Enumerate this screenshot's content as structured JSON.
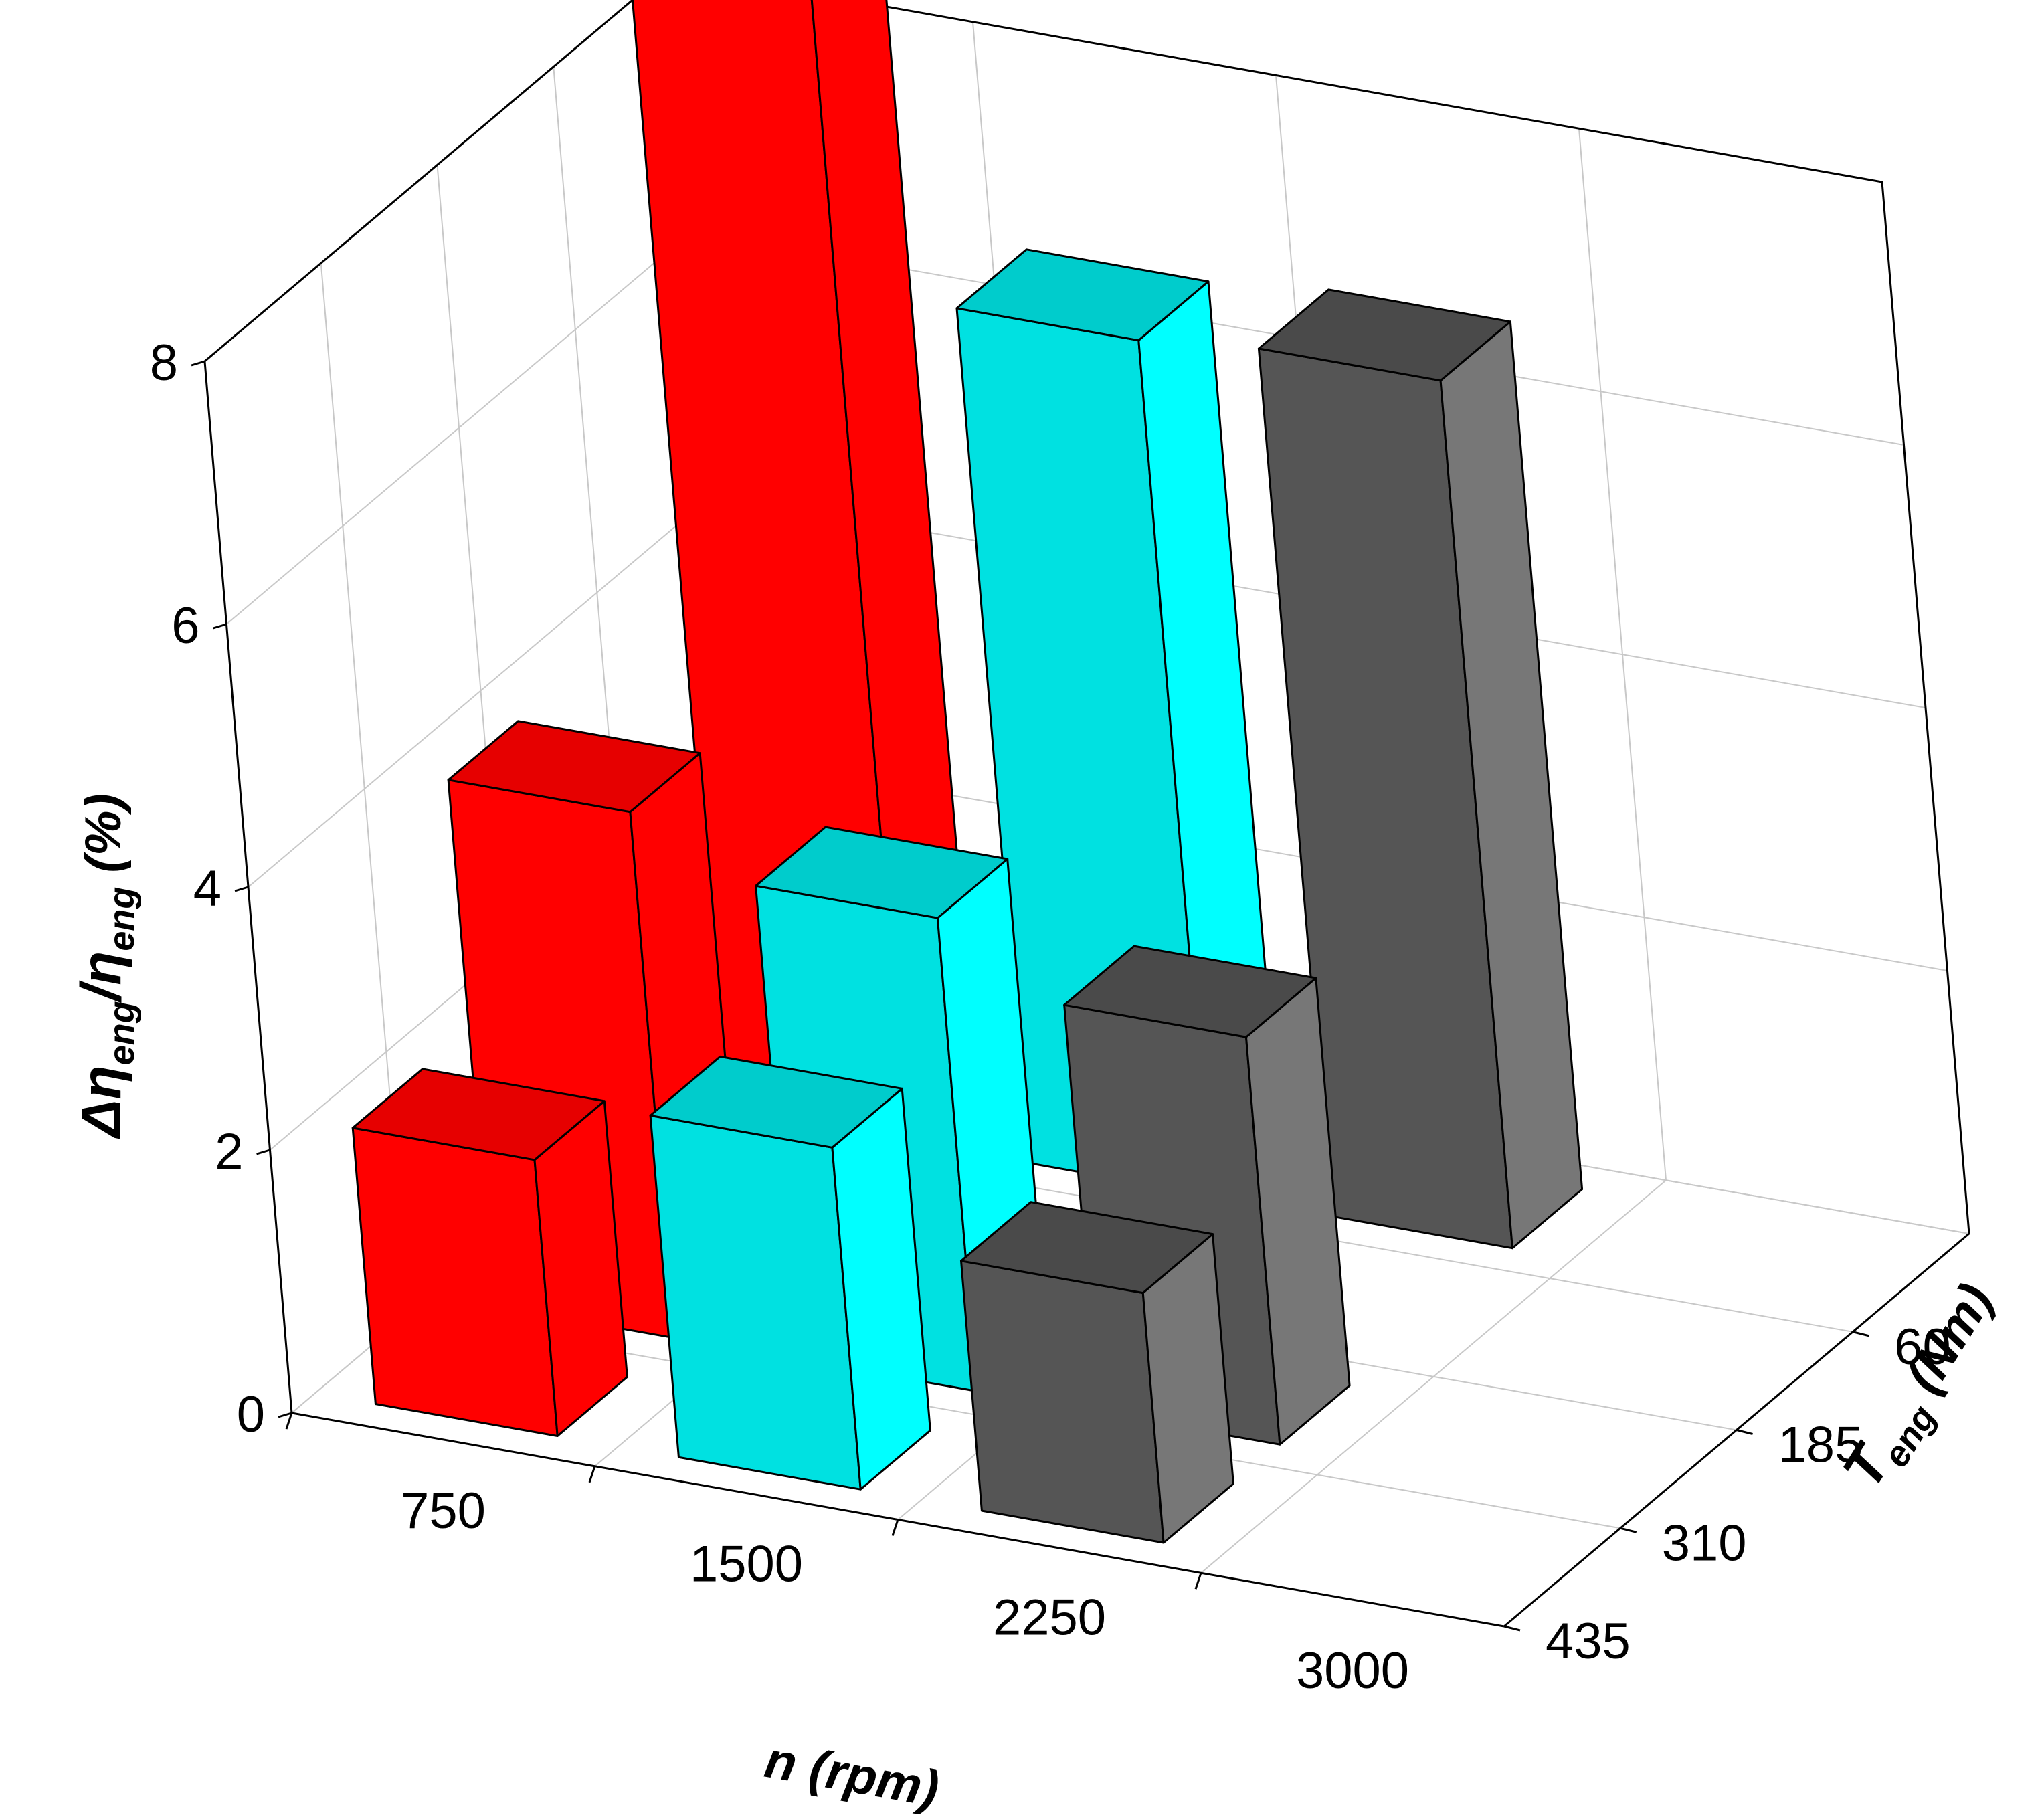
{
  "chart_data": {
    "type": "bar3d",
    "x_categories": [
      "750",
      "1500",
      "2250",
      "3000"
    ],
    "y_categories": [
      "60",
      "185",
      "310",
      "435"
    ],
    "zlim": [
      0,
      8
    ],
    "z_ticks": [
      "0",
      "2",
      "4",
      "6",
      "8"
    ],
    "grid": true,
    "x_title": {
      "var": "n",
      "unit": "(rpm)"
    },
    "y_title": {
      "var": "T",
      "sub": "eng",
      "unit": "(Nm)"
    },
    "z_title": {
      "prefix": "Δη",
      "sub1": "eng",
      "mid": "/η",
      "sub2": "eng",
      "unit": "(%)"
    },
    "bars": [
      {
        "n": "750",
        "T": "60",
        "value": 8.8,
        "color": "red"
      },
      {
        "n": "750",
        "T": "310",
        "value": 4.0,
        "color": "red"
      },
      {
        "n": "750",
        "T": "435",
        "value": 2.1,
        "color": "red"
      },
      {
        "n": "1500",
        "T": "60",
        "value": 6.5,
        "color": "cyan"
      },
      {
        "n": "1500",
        "T": "310",
        "value": 3.6,
        "color": "cyan"
      },
      {
        "n": "1500",
        "T": "435",
        "value": 2.6,
        "color": "cyan"
      },
      {
        "n": "2250",
        "T": "60",
        "value": 6.6,
        "color": "gray"
      },
      {
        "n": "2250",
        "T": "310",
        "value": 3.1,
        "color": "gray"
      },
      {
        "n": "2250",
        "T": "435",
        "value": 1.9,
        "color": "gray"
      }
    ],
    "colors": {
      "red": {
        "front": "#ff0000",
        "top": "#e60000",
        "side": "#ff0000"
      },
      "cyan": {
        "front": "#00e1e1",
        "top": "#00cccc",
        "side": "#00ffff"
      },
      "gray": {
        "front": "#555555",
        "top": "#4a4a4a",
        "side": "#777777"
      }
    }
  }
}
